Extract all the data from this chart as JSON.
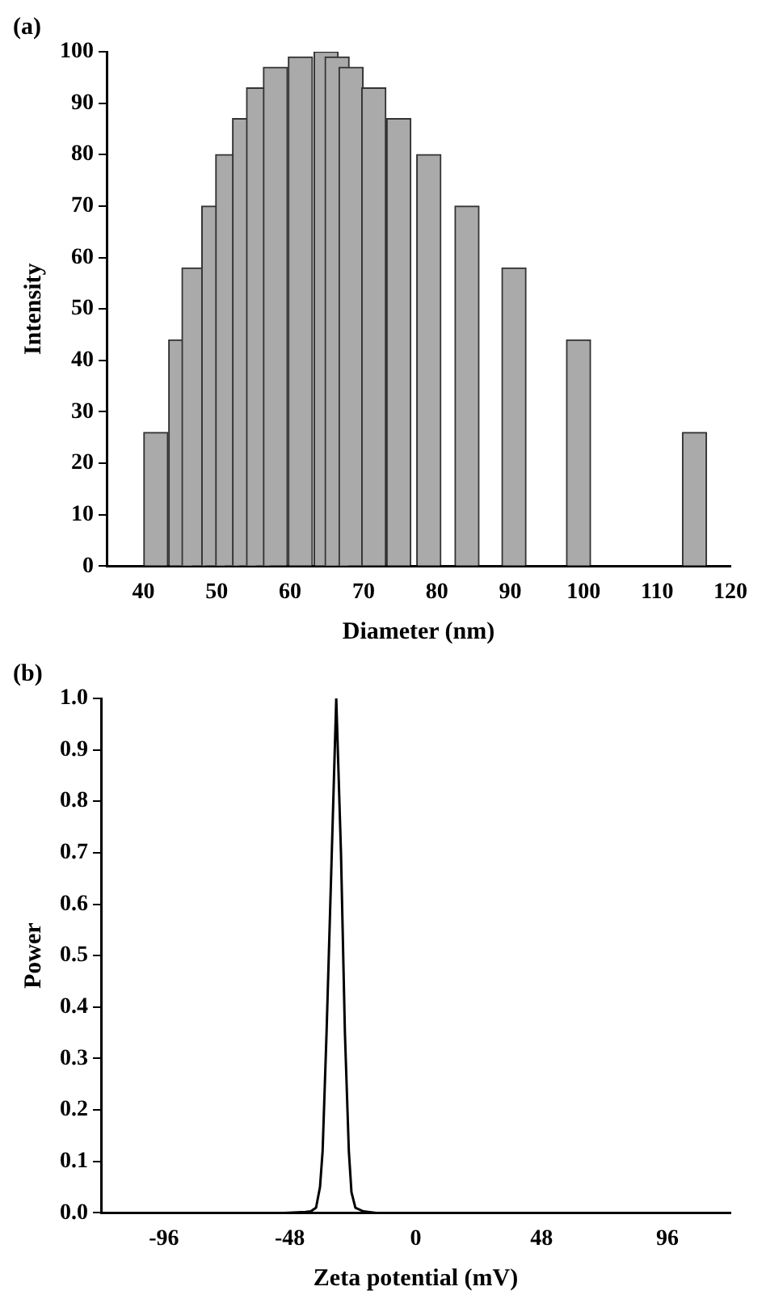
{
  "chart_data": [
    {
      "type": "bar",
      "title": "(a)",
      "xlabel": "Diameter (nm)",
      "ylabel": "Intensity",
      "x": [
        41.7,
        45.1,
        46.9,
        49.6,
        51.5,
        53.8,
        55.7,
        58.0,
        61.4,
        64.9,
        66.4,
        68.3,
        71.4,
        74.8,
        78.9,
        84.1,
        90.5,
        99.3,
        115.1
      ],
      "values": [
        26,
        44,
        58,
        70,
        80,
        87,
        93,
        97,
        99,
        100,
        99,
        97,
        93,
        87,
        80,
        70,
        58,
        44,
        26
      ],
      "color": "#aaaaaa",
      "xlim": [
        35,
        120
      ],
      "xticks": [
        40,
        50,
        60,
        70,
        80,
        90,
        100,
        110,
        120
      ],
      "ylim": [
        0,
        100
      ],
      "yticks": [
        0,
        10,
        20,
        30,
        40,
        50,
        60,
        70,
        80,
        90,
        100
      ],
      "grid": false,
      "legend": false
    },
    {
      "type": "line",
      "title": "(b)",
      "xlabel": "Zeta potential (mV)",
      "ylabel": "Power",
      "x": [
        -120,
        -80,
        -50,
        -42,
        -40,
        -38,
        -36.5,
        -35.5,
        -34,
        -32,
        -30.3,
        -28.5,
        -27,
        -25.5,
        -24.5,
        -23,
        -20,
        -15,
        10,
        40,
        120
      ],
      "values": [
        0,
        0,
        0,
        0.002,
        0.003,
        0.01,
        0.05,
        0.12,
        0.35,
        0.7,
        1.0,
        0.7,
        0.35,
        0.12,
        0.04,
        0.01,
        0.003,
        0,
        0,
        0,
        0
      ],
      "color": "#000000",
      "xlim": [
        -120,
        120
      ],
      "xticks": [
        -96,
        -48,
        0,
        48,
        96
      ],
      "ylim": [
        0,
        1
      ],
      "yticks": [
        {
          "value": 0,
          "label": "0.0"
        },
        0.1,
        0.2,
        0.3,
        0.4,
        0.5,
        0.6,
        0.7,
        0.8,
        0.9,
        {
          "value": 1,
          "label": "1.0"
        }
      ],
      "grid": false,
      "legend": false
    }
  ]
}
